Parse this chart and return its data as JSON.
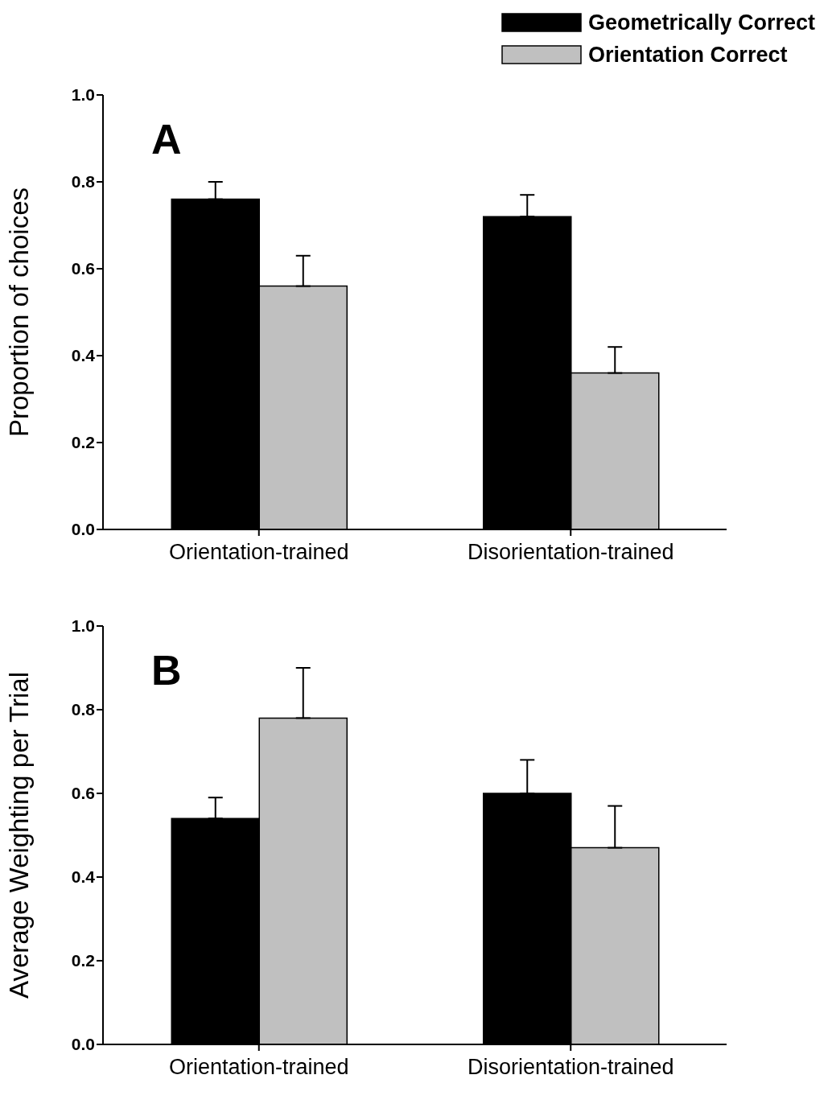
{
  "chart_data": [
    {
      "type": "bar",
      "ylabel": "Proportion of choices",
      "annotations": [
        "A"
      ],
      "categories": [
        "Orientation-trained",
        "Disorientation-trained"
      ],
      "legend": "top right",
      "ylim": [
        0,
        1
      ],
      "yticks": [
        {
          "value": 0,
          "label": "0.0"
        },
        {
          "value": 0.2,
          "label": "0.2"
        },
        {
          "value": 0.4,
          "label": "0.4"
        },
        {
          "value": 0.6,
          "label": "0.6"
        },
        {
          "value": 0.8,
          "label": "0.8"
        },
        {
          "value": 1,
          "label": "1.0"
        }
      ],
      "series": [
        {
          "name": "Geometrically Correct",
          "color": "#000000",
          "values": [
            0.76,
            0.72
          ],
          "errors": [
            [
              0.76,
              0.8
            ],
            [
              0.72,
              0.77
            ]
          ]
        },
        {
          "name": "Orientation Correct",
          "color": "#c0c0c0",
          "values": [
            0.56,
            0.36
          ],
          "errors": [
            [
              0.56,
              0.63
            ],
            [
              0.36,
              0.42
            ]
          ]
        }
      ]
    },
    {
      "type": "bar",
      "ylabel": "Average Weighting per Trial",
      "annotations": [
        "B"
      ],
      "categories": [
        "Orientation-trained",
        "Disorientation-trained"
      ],
      "ylim": [
        0,
        1
      ],
      "yticks": [
        {
          "value": 0,
          "label": "0.0"
        },
        {
          "value": 0.2,
          "label": "0.2"
        },
        {
          "value": 0.4,
          "label": "0.4"
        },
        {
          "value": 0.6,
          "label": "0.6"
        },
        {
          "value": 0.8,
          "label": "0.8"
        },
        {
          "value": 1,
          "label": "1.0"
        }
      ],
      "series": [
        {
          "color": "#000000",
          "values": [
            0.54,
            0.6
          ],
          "errors": [
            [
              0.54,
              0.59
            ],
            [
              0.6,
              0.68
            ]
          ]
        },
        {
          "color": "#c0c0c0",
          "values": [
            0.78,
            0.47
          ],
          "errors": [
            [
              0.78,
              0.9
            ],
            [
              0.47,
              0.57
            ]
          ]
        }
      ]
    }
  ]
}
